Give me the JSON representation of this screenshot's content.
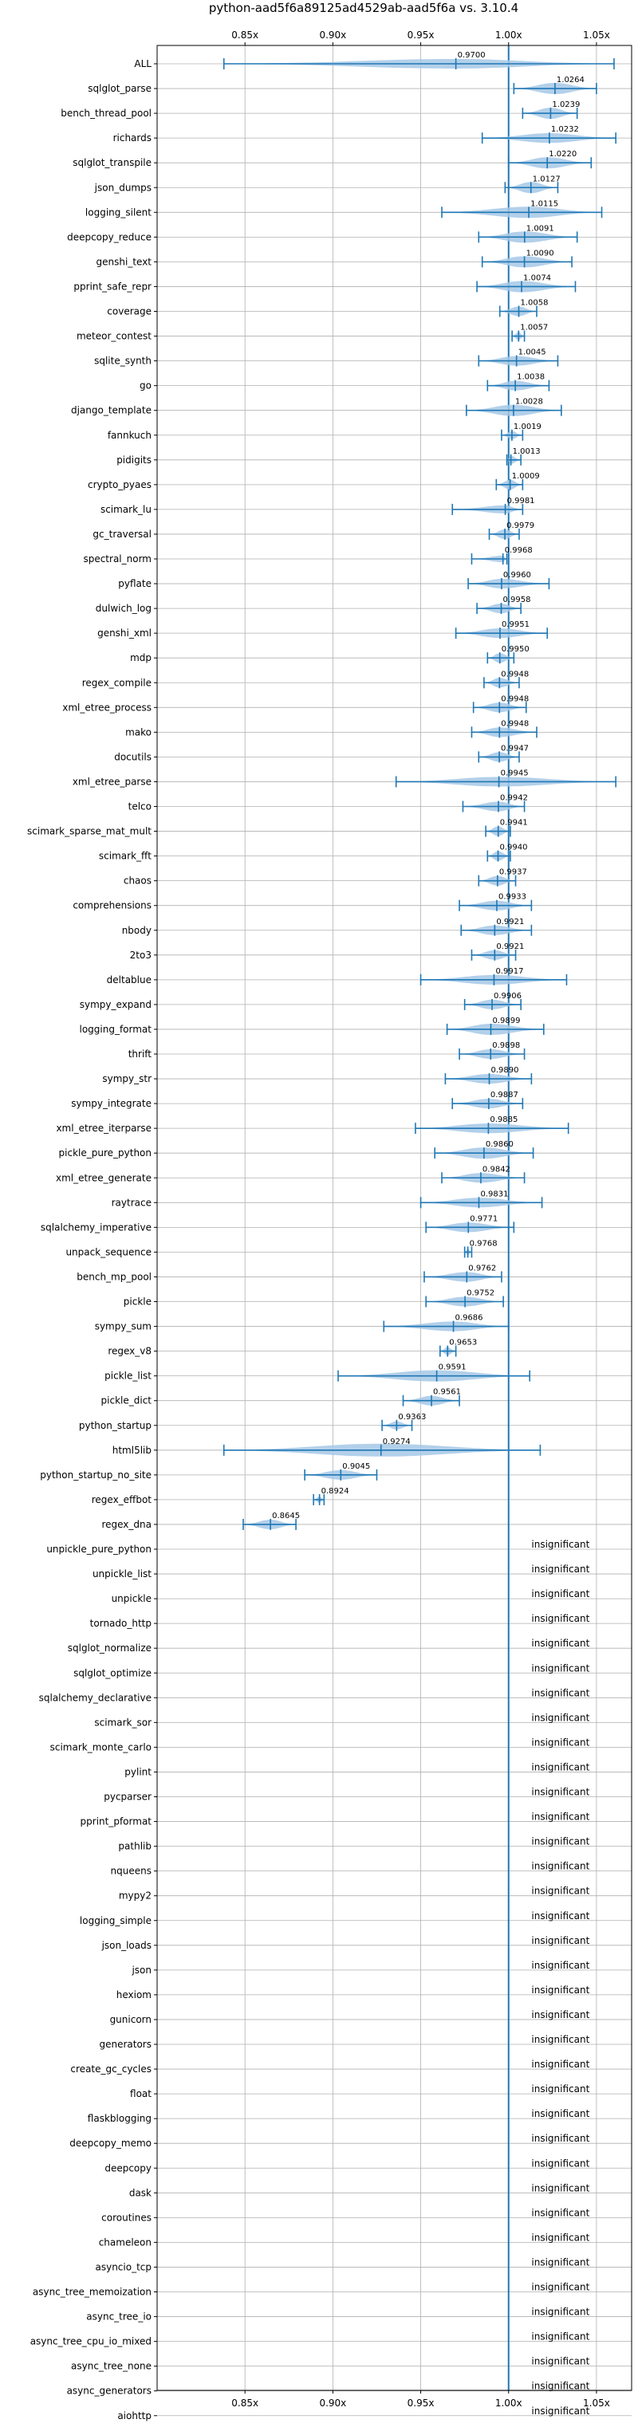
{
  "chart_data": {
    "type": "violin",
    "title": "python-aad5f6a89125ad4529ab-aad5f6a vs. 3.10.4",
    "xlabel": "",
    "ylabel": "",
    "xlim": [
      0.8,
      1.07
    ],
    "x_ticks": [
      0.85,
      0.9,
      0.95,
      1.0,
      1.05
    ],
    "x_tick_labels": [
      "0.85x",
      "0.90x",
      "0.95x",
      "1.00x",
      "1.05x"
    ],
    "reference_line": 1.0,
    "grid": true,
    "color": "#1f77b4",
    "fill_color": "#a6c8e6",
    "insignificant_label": "insignificant",
    "series": [
      {
        "name": "ALL",
        "median": 0.97,
        "label": "0.9700",
        "min": 0.838,
        "max": 1.06,
        "half": 6
      },
      {
        "name": "sqlglot_parse",
        "median": 1.0264,
        "label": "1.0264",
        "min": 1.003,
        "max": 1.05,
        "half": 7
      },
      {
        "name": "bench_thread_pool",
        "median": 1.0239,
        "label": "1.0239",
        "min": 1.008,
        "max": 1.039,
        "half": 7
      },
      {
        "name": "richards",
        "median": 1.0232,
        "label": "1.0232",
        "min": 0.985,
        "max": 1.061,
        "half": 6
      },
      {
        "name": "sqlglot_transpile",
        "median": 1.022,
        "label": "1.0220",
        "min": 1.0,
        "max": 1.047,
        "half": 7
      },
      {
        "name": "json_dumps",
        "median": 1.0127,
        "label": "1.0127",
        "min": 0.998,
        "max": 1.028,
        "half": 7
      },
      {
        "name": "logging_silent",
        "median": 1.0115,
        "label": "1.0115",
        "min": 0.962,
        "max": 1.053,
        "half": 7
      },
      {
        "name": "deepcopy_reduce",
        "median": 1.0091,
        "label": "1.0091",
        "min": 0.983,
        "max": 1.039,
        "half": 7
      },
      {
        "name": "genshi_text",
        "median": 1.009,
        "label": "1.0090",
        "min": 0.985,
        "max": 1.036,
        "half": 7
      },
      {
        "name": "pprint_safe_repr",
        "median": 1.0074,
        "label": "1.0074",
        "min": 0.982,
        "max": 1.038,
        "half": 7
      },
      {
        "name": "coverage",
        "median": 1.0058,
        "label": "1.0058",
        "min": 0.995,
        "max": 1.016,
        "half": 6
      },
      {
        "name": "meteor_contest",
        "median": 1.0057,
        "label": "1.0057",
        "min": 1.002,
        "max": 1.009,
        "half": 5
      },
      {
        "name": "sqlite_synth",
        "median": 1.0045,
        "label": "1.0045",
        "min": 0.983,
        "max": 1.028,
        "half": 6
      },
      {
        "name": "go",
        "median": 1.0038,
        "label": "1.0038",
        "min": 0.988,
        "max": 1.023,
        "half": 6
      },
      {
        "name": "django_template",
        "median": 1.0028,
        "label": "1.0028",
        "min": 0.976,
        "max": 1.03,
        "half": 7
      },
      {
        "name": "fannkuch",
        "median": 1.0019,
        "label": "1.0019",
        "min": 0.996,
        "max": 1.008,
        "half": 5
      },
      {
        "name": "pidigits",
        "median": 1.0013,
        "label": "1.0013",
        "min": 0.999,
        "max": 1.007,
        "half": 5
      },
      {
        "name": "crypto_pyaes",
        "median": 1.0009,
        "label": "1.0009",
        "min": 0.993,
        "max": 1.008,
        "half": 6
      },
      {
        "name": "scimark_lu",
        "median": 0.9981,
        "label": "0.9981",
        "min": 0.968,
        "max": 1.008,
        "half": 5
      },
      {
        "name": "gc_traversal",
        "median": 0.9979,
        "label": "0.9979",
        "min": 0.989,
        "max": 1.006,
        "half": 6
      },
      {
        "name": "spectral_norm",
        "median": 0.9968,
        "label": "0.9968",
        "min": 0.979,
        "max": 0.999,
        "half": 4
      },
      {
        "name": "pyflate",
        "median": 0.996,
        "label": "0.9960",
        "min": 0.977,
        "max": 1.023,
        "half": 6
      },
      {
        "name": "dulwich_log",
        "median": 0.9958,
        "label": "0.9958",
        "min": 0.982,
        "max": 1.007,
        "half": 6
      },
      {
        "name": "genshi_xml",
        "median": 0.9951,
        "label": "0.9951",
        "min": 0.97,
        "max": 1.022,
        "half": 6
      },
      {
        "name": "mdp",
        "median": 0.995,
        "label": "0.9950",
        "min": 0.988,
        "max": 1.003,
        "half": 6
      },
      {
        "name": "regex_compile",
        "median": 0.9948,
        "label": "0.9948",
        "min": 0.986,
        "max": 1.006,
        "half": 6
      },
      {
        "name": "xml_etree_process",
        "median": 0.9948,
        "label": "0.9948",
        "min": 0.98,
        "max": 1.01,
        "half": 6
      },
      {
        "name": "mako",
        "median": 0.9948,
        "label": "0.9948",
        "min": 0.979,
        "max": 1.016,
        "half": 6
      },
      {
        "name": "docutils",
        "median": 0.9947,
        "label": "0.9947",
        "min": 0.983,
        "max": 1.006,
        "half": 6
      },
      {
        "name": "xml_etree_parse",
        "median": 0.9945,
        "label": "0.9945",
        "min": 0.936,
        "max": 1.061,
        "half": 6
      },
      {
        "name": "telco",
        "median": 0.9942,
        "label": "0.9942",
        "min": 0.974,
        "max": 1.009,
        "half": 6
      },
      {
        "name": "scimark_sparse_mat_mult",
        "median": 0.9941,
        "label": "0.9941",
        "min": 0.987,
        "max": 1.001,
        "half": 6
      },
      {
        "name": "scimark_fft",
        "median": 0.994,
        "label": "0.9940",
        "min": 0.988,
        "max": 1.001,
        "half": 6
      },
      {
        "name": "chaos",
        "median": 0.9937,
        "label": "0.9937",
        "min": 0.983,
        "max": 1.004,
        "half": 6
      },
      {
        "name": "comprehensions",
        "median": 0.9933,
        "label": "0.9933",
        "min": 0.972,
        "max": 1.013,
        "half": 6
      },
      {
        "name": "nbody",
        "median": 0.9921,
        "label": "0.9921",
        "min": 0.973,
        "max": 1.013,
        "half": 6
      },
      {
        "name": "2to3",
        "median": 0.9921,
        "label": "0.9921",
        "min": 0.979,
        "max": 1.004,
        "half": 6
      },
      {
        "name": "deltablue",
        "median": 0.9917,
        "label": "0.9917",
        "min": 0.95,
        "max": 1.033,
        "half": 6
      },
      {
        "name": "sympy_expand",
        "median": 0.9906,
        "label": "0.9906",
        "min": 0.975,
        "max": 1.007,
        "half": 6
      },
      {
        "name": "logging_format",
        "median": 0.9899,
        "label": "0.9899",
        "min": 0.965,
        "max": 1.02,
        "half": 7
      },
      {
        "name": "thrift",
        "median": 0.9898,
        "label": "0.9898",
        "min": 0.972,
        "max": 1.009,
        "half": 6
      },
      {
        "name": "sympy_str",
        "median": 0.989,
        "label": "0.9890",
        "min": 0.964,
        "max": 1.013,
        "half": 6
      },
      {
        "name": "sympy_integrate",
        "median": 0.9887,
        "label": "0.9887",
        "min": 0.968,
        "max": 1.008,
        "half": 6
      },
      {
        "name": "xml_etree_iterparse",
        "median": 0.9885,
        "label": "0.9885",
        "min": 0.947,
        "max": 1.034,
        "half": 6
      },
      {
        "name": "pickle_pure_python",
        "median": 0.986,
        "label": "0.9860",
        "min": 0.958,
        "max": 1.014,
        "half": 7
      },
      {
        "name": "xml_etree_generate",
        "median": 0.9842,
        "label": "0.9842",
        "min": 0.962,
        "max": 1.009,
        "half": 6
      },
      {
        "name": "raytrace",
        "median": 0.9831,
        "label": "0.9831",
        "min": 0.95,
        "max": 1.019,
        "half": 6
      },
      {
        "name": "sqlalchemy_imperative",
        "median": 0.9771,
        "label": "0.9771",
        "min": 0.953,
        "max": 1.003,
        "half": 6
      },
      {
        "name": "unpack_sequence",
        "median": 0.9768,
        "label": "0.9768",
        "min": 0.975,
        "max": 0.979,
        "half": 4
      },
      {
        "name": "bench_mp_pool",
        "median": 0.9762,
        "label": "0.9762",
        "min": 0.952,
        "max": 0.996,
        "half": 6
      },
      {
        "name": "pickle",
        "median": 0.9752,
        "label": "0.9752",
        "min": 0.953,
        "max": 0.997,
        "half": 6
      },
      {
        "name": "sympy_sum",
        "median": 0.9686,
        "label": "0.9686",
        "min": 0.929,
        "max": 1.0,
        "half": 6
      },
      {
        "name": "regex_v8",
        "median": 0.9653,
        "label": "0.9653",
        "min": 0.961,
        "max": 0.97,
        "half": 5
      },
      {
        "name": "pickle_list",
        "median": 0.9591,
        "label": "0.9591",
        "min": 0.903,
        "max": 1.012,
        "half": 7
      },
      {
        "name": "pickle_dict",
        "median": 0.9561,
        "label": "0.9561",
        "min": 0.94,
        "max": 0.972,
        "half": 6
      },
      {
        "name": "python_startup",
        "median": 0.9363,
        "label": "0.9363",
        "min": 0.928,
        "max": 0.945,
        "half": 5
      },
      {
        "name": "html5lib",
        "median": 0.9274,
        "label": "0.9274",
        "min": 0.838,
        "max": 1.018,
        "half": 8
      },
      {
        "name": "python_startup_no_site",
        "median": 0.9045,
        "label": "0.9045",
        "min": 0.884,
        "max": 0.925,
        "half": 6
      },
      {
        "name": "regex_effbot",
        "median": 0.8924,
        "label": "0.8924",
        "min": 0.889,
        "max": 0.895,
        "half": 4
      },
      {
        "name": "regex_dna",
        "median": 0.8645,
        "label": "0.8645",
        "min": 0.849,
        "max": 0.879,
        "half": 6
      },
      {
        "name": "unpickle_pure_python",
        "insignificant": true
      },
      {
        "name": "unpickle_list",
        "insignificant": true
      },
      {
        "name": "unpickle",
        "insignificant": true
      },
      {
        "name": "tornado_http",
        "insignificant": true
      },
      {
        "name": "sqlglot_normalize",
        "insignificant": true
      },
      {
        "name": "sqlglot_optimize",
        "insignificant": true
      },
      {
        "name": "sqlalchemy_declarative",
        "insignificant": true
      },
      {
        "name": "scimark_sor",
        "insignificant": true
      },
      {
        "name": "scimark_monte_carlo",
        "insignificant": true
      },
      {
        "name": "pylint",
        "insignificant": true
      },
      {
        "name": "pycparser",
        "insignificant": true
      },
      {
        "name": "pprint_pformat",
        "insignificant": true
      },
      {
        "name": "pathlib",
        "insignificant": true
      },
      {
        "name": "nqueens",
        "insignificant": true
      },
      {
        "name": "mypy2",
        "insignificant": true
      },
      {
        "name": "logging_simple",
        "insignificant": true
      },
      {
        "name": "json_loads",
        "insignificant": true
      },
      {
        "name": "json",
        "insignificant": true
      },
      {
        "name": "hexiom",
        "insignificant": true
      },
      {
        "name": "gunicorn",
        "insignificant": true
      },
      {
        "name": "generators",
        "insignificant": true
      },
      {
        "name": "create_gc_cycles",
        "insignificant": true
      },
      {
        "name": "float",
        "insignificant": true
      },
      {
        "name": "flaskblogging",
        "insignificant": true
      },
      {
        "name": "deepcopy_memo",
        "insignificant": true
      },
      {
        "name": "deepcopy",
        "insignificant": true
      },
      {
        "name": "dask",
        "insignificant": true
      },
      {
        "name": "coroutines",
        "insignificant": true
      },
      {
        "name": "chameleon",
        "insignificant": true
      },
      {
        "name": "asyncio_tcp",
        "insignificant": true
      },
      {
        "name": "async_tree_memoization",
        "insignificant": true
      },
      {
        "name": "async_tree_io",
        "insignificant": true
      },
      {
        "name": "async_tree_cpu_io_mixed",
        "insignificant": true
      },
      {
        "name": "async_tree_none",
        "insignificant": true
      },
      {
        "name": "async_generators",
        "insignificant": true
      },
      {
        "name": "aiohttp",
        "insignificant": true
      }
    ]
  }
}
